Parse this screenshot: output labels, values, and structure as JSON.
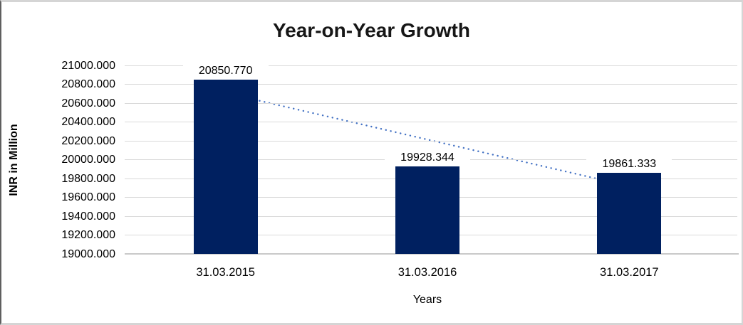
{
  "chart_data": {
    "type": "bar",
    "title": "Year-on-Year Growth",
    "categories": [
      "31.03.2015",
      "31.03.2016",
      "31.03.2017"
    ],
    "values": [
      20850.77,
      19928.344,
      19861.333
    ],
    "data_labels": [
      "20850.770",
      "19928.344",
      "19861.333"
    ],
    "xlabel": "Years",
    "ylabel": "INR in Million",
    "ylim": [
      19000,
      21000
    ],
    "ytick_step": 200,
    "ytick_labels": [
      "21000.000",
      "20800.000",
      "20600.000",
      "20400.000",
      "20200.000",
      "20000.000",
      "19800.000",
      "19600.000",
      "19400.000",
      "19200.000",
      "19000.000"
    ],
    "grid": true,
    "legend": "none",
    "bar_color": "#002060",
    "gridline_color": "#d9d9d9",
    "axis_line_color": "#c9c9c9",
    "trendline": {
      "type": "linear",
      "style": "dotted",
      "color": "#4472C4"
    }
  }
}
